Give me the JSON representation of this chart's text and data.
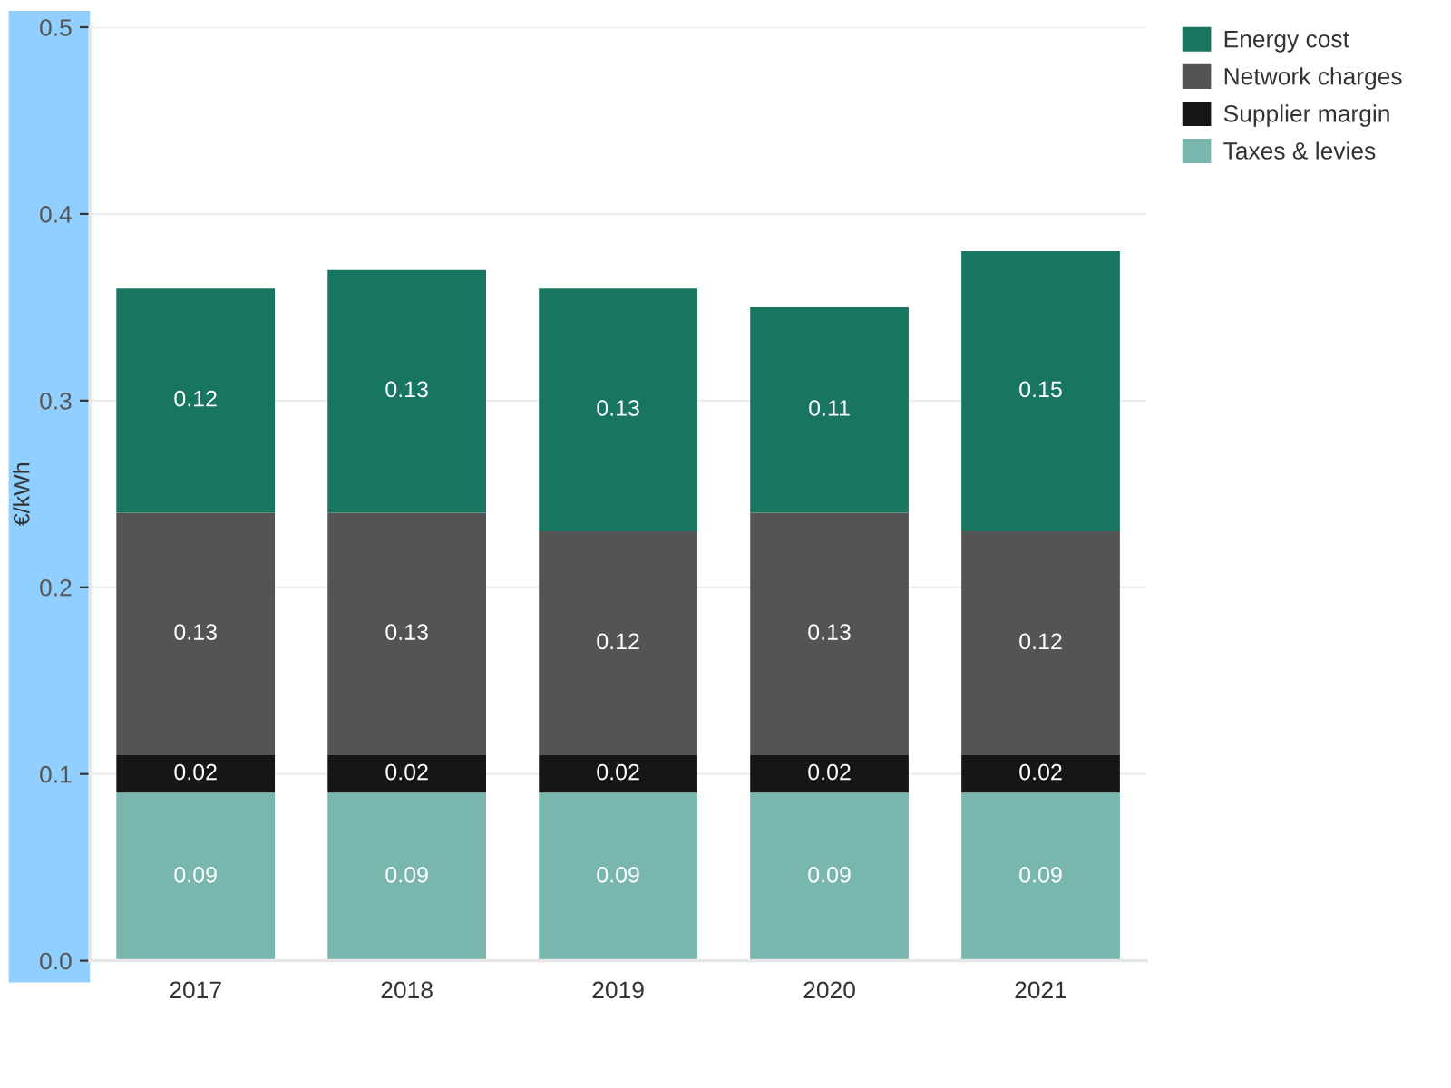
{
  "chart_data": {
    "type": "bar",
    "stacked": true,
    "ylabel": "€/kWh",
    "categories": [
      "2017",
      "2018",
      "2019",
      "2020",
      "2021"
    ],
    "series": [
      {
        "name": "Taxes & levies",
        "color": "#78b6ae",
        "values": [
          0.09,
          0.09,
          0.09,
          0.09,
          0.09
        ]
      },
      {
        "name": "Supplier margin",
        "color": "#161616",
        "values": [
          0.02,
          0.02,
          0.02,
          0.02,
          0.02
        ]
      },
      {
        "name": "Network charges",
        "color": "#545454",
        "values": [
          0.13,
          0.13,
          0.12,
          0.13,
          0.12
        ]
      },
      {
        "name": "Energy cost",
        "color": "#177560",
        "values": [
          0.12,
          0.13,
          0.13,
          0.11,
          0.15
        ]
      }
    ],
    "ylim": [
      0,
      0.5
    ],
    "yticks": [
      {
        "value": 0,
        "label": "0.0"
      },
      0.1,
      0.2,
      0.3,
      0.4,
      0.5
    ],
    "grid": "y",
    "legend": "top right",
    "data_labels": true
  }
}
